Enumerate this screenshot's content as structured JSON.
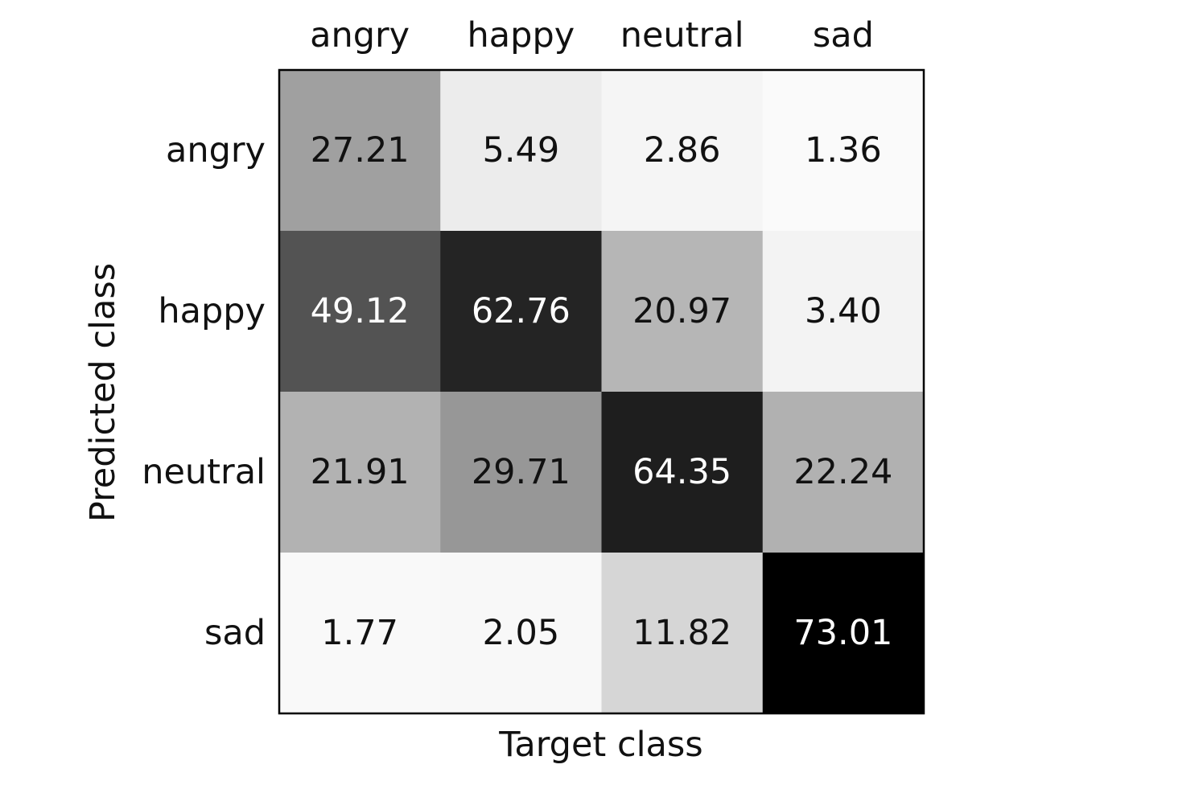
{
  "chart_data": {
    "type": "heatmap",
    "title": "",
    "xlabel": "Target class",
    "ylabel": "Predicted class",
    "x_categories": [
      "angry",
      "happy",
      "neutral",
      "sad"
    ],
    "y_categories": [
      "angry",
      "happy",
      "neutral",
      "sad"
    ],
    "values": [
      [
        27.21,
        5.49,
        2.86,
        1.36
      ],
      [
        49.12,
        62.76,
        20.97,
        3.4
      ],
      [
        21.91,
        29.71,
        64.35,
        22.24
      ],
      [
        1.77,
        2.05,
        11.82,
        73.01
      ]
    ],
    "value_labels": [
      [
        "27.21",
        "5.49",
        "2.86",
        "1.36"
      ],
      [
        "49.12",
        "62.76",
        "20.97",
        "3.40"
      ],
      [
        "21.91",
        "29.71",
        "64.35",
        "22.24"
      ],
      [
        "1.77",
        "2.05",
        "11.82",
        "73.01"
      ]
    ],
    "colormap": "greys",
    "color_range": [
      0,
      73.01
    ],
    "x_tick_position": "top",
    "grid": false,
    "legend": false
  }
}
